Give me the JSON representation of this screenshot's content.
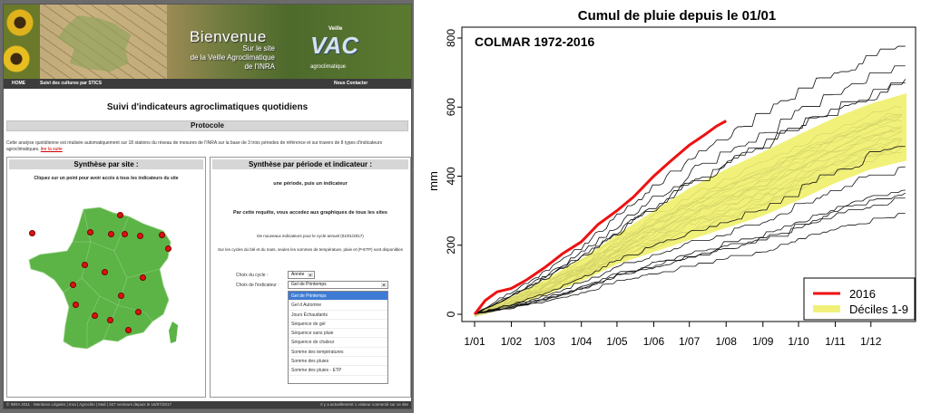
{
  "site": {
    "banner": {
      "title": "Bienvenue",
      "sub1": "Sur le site",
      "sub2": "de la Veille Agroclimatique",
      "sub3": "de l'INRA",
      "logo_small": "Veille",
      "logo_big": "VAC",
      "logo_tag": "agroclimatique"
    },
    "nav": {
      "home": "HOME",
      "suivi": "Suivi des cultures par STICS",
      "contact": "Nous Contacter"
    },
    "page_title": "Suivi d'indicateurs agroclimatiques quotidiens",
    "protocole": "Protocole",
    "protocole_text": "Cette analyse quotidienne est réalisée automatiquement sur 18 stations du réseau de mesures de l'INRA sur la base de 3 trois périodes de référence et sur travers de 8 types d'indicateurs agroclimatiques.",
    "lire_suite": "lire la suite",
    "left_panel": {
      "heading": "Synthèse par site :",
      "text": "Cliquez sur un point pour avoir accès à tous les indicateurs du site"
    },
    "right_panel": {
      "heading": "Synthèse par période et indicateur :",
      "line1": "une période, puis un indicateur",
      "line2": "Par cette requête, vous accedez aux graphiques de tous les sites",
      "line3": "De nouveaux indicateurs pour le cycle annuel (01/01/2017)",
      "line4": "Sur les cycles du blé et du maïs, seules les sommes de température, pluie et (P-ETP) sont disponibles",
      "cycle_label": "Choix du cycle :",
      "cycle_value": "Année",
      "indic_label": "Choix de l'indicateur :",
      "indic_value": "Gel de Printemps",
      "options": [
        "Gel de Printemps",
        "Gel d Automne",
        "Jours Échaudants",
        "Séquence de gel",
        "Séquence sans pluie",
        "Séquence de chaleur",
        "Somme des températures",
        "Somme des pluies",
        "Somme des pluies - ETP"
      ]
    },
    "footer_left": "© INRA 2011 · Mentions Légales | Inra | Agroclim | Mail | 927 vecteurs depuis le 16/07/2017",
    "footer_right": "Il y a actuellement 1 visiteur connecté sur ce site"
  },
  "colors": {
    "banner_dark": "#3c3c3c",
    "france_green": "#5cb346",
    "site_dot": "#dd1111",
    "select_highlight": "#3d7bd4"
  },
  "chart_data": {
    "type": "line",
    "title": "Cumul de pluie depuis le 01/01",
    "subtitle": "COLMAR 1972-2016",
    "xlabel": "",
    "ylabel": "mm",
    "ylim": [
      0,
      800
    ],
    "x_ticks": [
      "1/01",
      "1/02",
      "1/03",
      "1/04",
      "1/05",
      "1/06",
      "1/07",
      "1/08",
      "1/09",
      "1/10",
      "1/11",
      "1/12"
    ],
    "y_ticks": [
      0,
      200,
      400,
      600,
      800
    ],
    "x_unit": "day of year",
    "legend_position": "bottom-right",
    "legend": [
      {
        "label": "2016",
        "color": "#ee1111"
      },
      {
        "label": "Déciles 1-9",
        "color": "#f1f17a"
      }
    ],
    "series": [
      {
        "name": "2016",
        "points": [
          [
            1,
            0
          ],
          [
            10,
            40
          ],
          [
            20,
            65
          ],
          [
            32,
            75
          ],
          [
            45,
            100
          ],
          [
            60,
            135
          ],
          [
            75,
            175
          ],
          [
            91,
            210
          ],
          [
            105,
            260
          ],
          [
            121,
            300
          ],
          [
            135,
            340
          ],
          [
            152,
            400
          ],
          [
            165,
            440
          ],
          [
            182,
            490
          ],
          [
            195,
            520
          ],
          [
            205,
            545
          ],
          [
            213,
            560
          ]
        ]
      },
      {
        "name": "Décile 1",
        "points": [
          [
            1,
            0
          ],
          [
            32,
            25
          ],
          [
            60,
            55
          ],
          [
            91,
            95
          ],
          [
            121,
            145
          ],
          [
            152,
            180
          ],
          [
            182,
            215
          ],
          [
            213,
            250
          ],
          [
            244,
            285
          ],
          [
            274,
            330
          ],
          [
            305,
            380
          ],
          [
            335,
            420
          ],
          [
            365,
            445
          ]
        ]
      },
      {
        "name": "Décile 9",
        "points": [
          [
            1,
            0
          ],
          [
            32,
            50
          ],
          [
            60,
            100
          ],
          [
            91,
            160
          ],
          [
            121,
            230
          ],
          [
            152,
            300
          ],
          [
            182,
            365
          ],
          [
            213,
            420
          ],
          [
            244,
            470
          ],
          [
            274,
            520
          ],
          [
            305,
            570
          ],
          [
            335,
            610
          ],
          [
            365,
            640
          ]
        ]
      }
    ],
    "historical_years_note": "45 years of historical cumulative rainfall curves (black lines)"
  }
}
